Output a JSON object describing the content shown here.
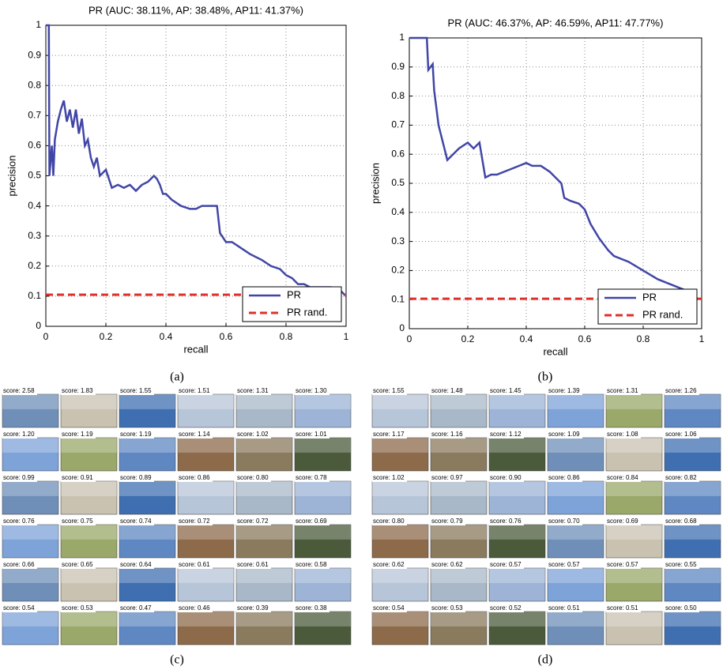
{
  "chart_data": [
    {
      "type": "line",
      "title": "PR (AUC: 38.11%, AP: 38.48%, AP11: 41.37%)",
      "xlabel": "recall",
      "ylabel": "precision",
      "xlim": [
        0,
        1
      ],
      "ylim": [
        0,
        1
      ],
      "xticks": [
        0,
        0.2,
        0.4,
        0.6,
        0.8,
        1
      ],
      "yticks": [
        0,
        0.1,
        0.2,
        0.3,
        0.4,
        0.5,
        0.6,
        0.7,
        0.8,
        0.9,
        1
      ],
      "grid": true,
      "legend": "lower right",
      "series": [
        {
          "name": "PR",
          "color": "#4146a6",
          "style": "solid",
          "x": [
            0,
            0.005,
            0.01,
            0.012,
            0.02,
            0.025,
            0.03,
            0.04,
            0.05,
            0.06,
            0.07,
            0.08,
            0.09,
            0.1,
            0.11,
            0.12,
            0.13,
            0.14,
            0.15,
            0.16,
            0.17,
            0.18,
            0.2,
            0.22,
            0.24,
            0.26,
            0.28,
            0.3,
            0.32,
            0.34,
            0.36,
            0.37,
            0.38,
            0.39,
            0.4,
            0.42,
            0.45,
            0.48,
            0.5,
            0.52,
            0.55,
            0.57,
            0.58,
            0.6,
            0.62,
            0.65,
            0.68,
            0.7,
            0.72,
            0.75,
            0.78,
            0.8,
            0.82,
            0.84,
            0.86,
            0.88,
            0.9,
            0.95,
            0.98,
            1
          ],
          "values": [
            1,
            1,
            1,
            0.5,
            0.6,
            0.5,
            0.62,
            0.68,
            0.72,
            0.75,
            0.68,
            0.72,
            0.66,
            0.72,
            0.64,
            0.69,
            0.6,
            0.62,
            0.56,
            0.53,
            0.56,
            0.5,
            0.52,
            0.46,
            0.47,
            0.46,
            0.47,
            0.45,
            0.47,
            0.48,
            0.5,
            0.49,
            0.47,
            0.44,
            0.44,
            0.42,
            0.4,
            0.39,
            0.39,
            0.4,
            0.4,
            0.4,
            0.31,
            0.28,
            0.28,
            0.26,
            0.24,
            0.23,
            0.22,
            0.2,
            0.19,
            0.17,
            0.16,
            0.14,
            0.14,
            0.13,
            0.13,
            0.13,
            0.12,
            0.1
          ]
        },
        {
          "name": "PR rand.",
          "color": "#e0302a",
          "style": "dashed",
          "x": [
            0,
            1
          ],
          "values": [
            0.105,
            0.105
          ]
        }
      ]
    },
    {
      "type": "line",
      "title": "PR (AUC: 46.37%, AP: 46.59%, AP11: 47.77%)",
      "xlabel": "recall",
      "ylabel": "precision",
      "xlim": [
        0,
        1
      ],
      "ylim": [
        0,
        1
      ],
      "xticks": [
        0,
        0.2,
        0.4,
        0.6,
        0.8,
        1
      ],
      "yticks": [
        0,
        0.1,
        0.2,
        0.3,
        0.4,
        0.5,
        0.6,
        0.7,
        0.8,
        0.9,
        1
      ],
      "grid": true,
      "legend": "lower right",
      "series": [
        {
          "name": "PR",
          "color": "#4146a6",
          "style": "solid",
          "x": [
            0,
            0.06,
            0.065,
            0.08,
            0.085,
            0.09,
            0.1,
            0.11,
            0.12,
            0.13,
            0.15,
            0.17,
            0.2,
            0.22,
            0.24,
            0.25,
            0.26,
            0.28,
            0.3,
            0.35,
            0.4,
            0.42,
            0.45,
            0.48,
            0.5,
            0.52,
            0.53,
            0.55,
            0.58,
            0.6,
            0.62,
            0.65,
            0.68,
            0.7,
            0.75,
            0.8,
            0.85,
            0.9,
            0.95
          ],
          "values": [
            1,
            1,
            0.89,
            0.91,
            0.82,
            0.78,
            0.7,
            0.66,
            0.62,
            0.58,
            0.6,
            0.62,
            0.64,
            0.62,
            0.64,
            0.58,
            0.52,
            0.53,
            0.53,
            0.55,
            0.57,
            0.56,
            0.56,
            0.54,
            0.52,
            0.5,
            0.45,
            0.44,
            0.43,
            0.41,
            0.36,
            0.31,
            0.27,
            0.25,
            0.23,
            0.2,
            0.17,
            0.15,
            0.13
          ]
        },
        {
          "name": "PR rand.",
          "color": "#e0302a",
          "style": "dashed",
          "x": [
            0,
            1
          ],
          "values": [
            0.103,
            0.103
          ]
        }
      ]
    }
  ],
  "captions": [
    "(a)",
    "(b)",
    "(c)",
    "(d)"
  ],
  "grids": [
    {
      "scores": [
        "score: 2.58",
        "score: 1.83",
        "score: 1.55",
        "score: 1.51",
        "score: 1.31",
        "score: 1.30",
        "score: 1.20",
        "score: 1.19",
        "score: 1.19",
        "score: 1.14",
        "score: 1.02",
        "score: 1.01",
        "score: 0.99",
        "score: 0.91",
        "score: 0.89",
        "score: 0.86",
        "score: 0.80",
        "score: 0.78",
        "score: 0.76",
        "score: 0.75",
        "score: 0.74",
        "score: 0.72",
        "score: 0.72",
        "score: 0.69",
        "score: 0.66",
        "score: 0.65",
        "score: 0.64",
        "score: 0.61",
        "score: 0.61",
        "score: 0.58",
        "score: 0.54",
        "score: 0.53",
        "score: 0.47",
        "score: 0.46",
        "score: 0.39",
        "score: 0.38"
      ]
    },
    {
      "scores": [
        "score: 1.55",
        "score: 1.48",
        "score: 1.45",
        "score: 1.39",
        "score: 1.31",
        "score: 1.26",
        "score: 1.17",
        "score: 1.16",
        "score: 1.12",
        "score: 1.09",
        "score: 1.08",
        "score: 1.06",
        "score: 1.02",
        "score: 0.97",
        "score: 0.90",
        "score: 0.86",
        "score: 0.84",
        "score: 0.82",
        "score: 0.80",
        "score: 0.79",
        "score: 0.76",
        "score: 0.70",
        "score: 0.69",
        "score: 0.68",
        "score: 0.62",
        "score: 0.62",
        "score: 0.57",
        "score: 0.57",
        "score: 0.57",
        "score: 0.55",
        "score: 0.54",
        "score: 0.53",
        "score: 0.52",
        "score: 0.51",
        "score: 0.51",
        "score: 0.50"
      ]
    }
  ]
}
